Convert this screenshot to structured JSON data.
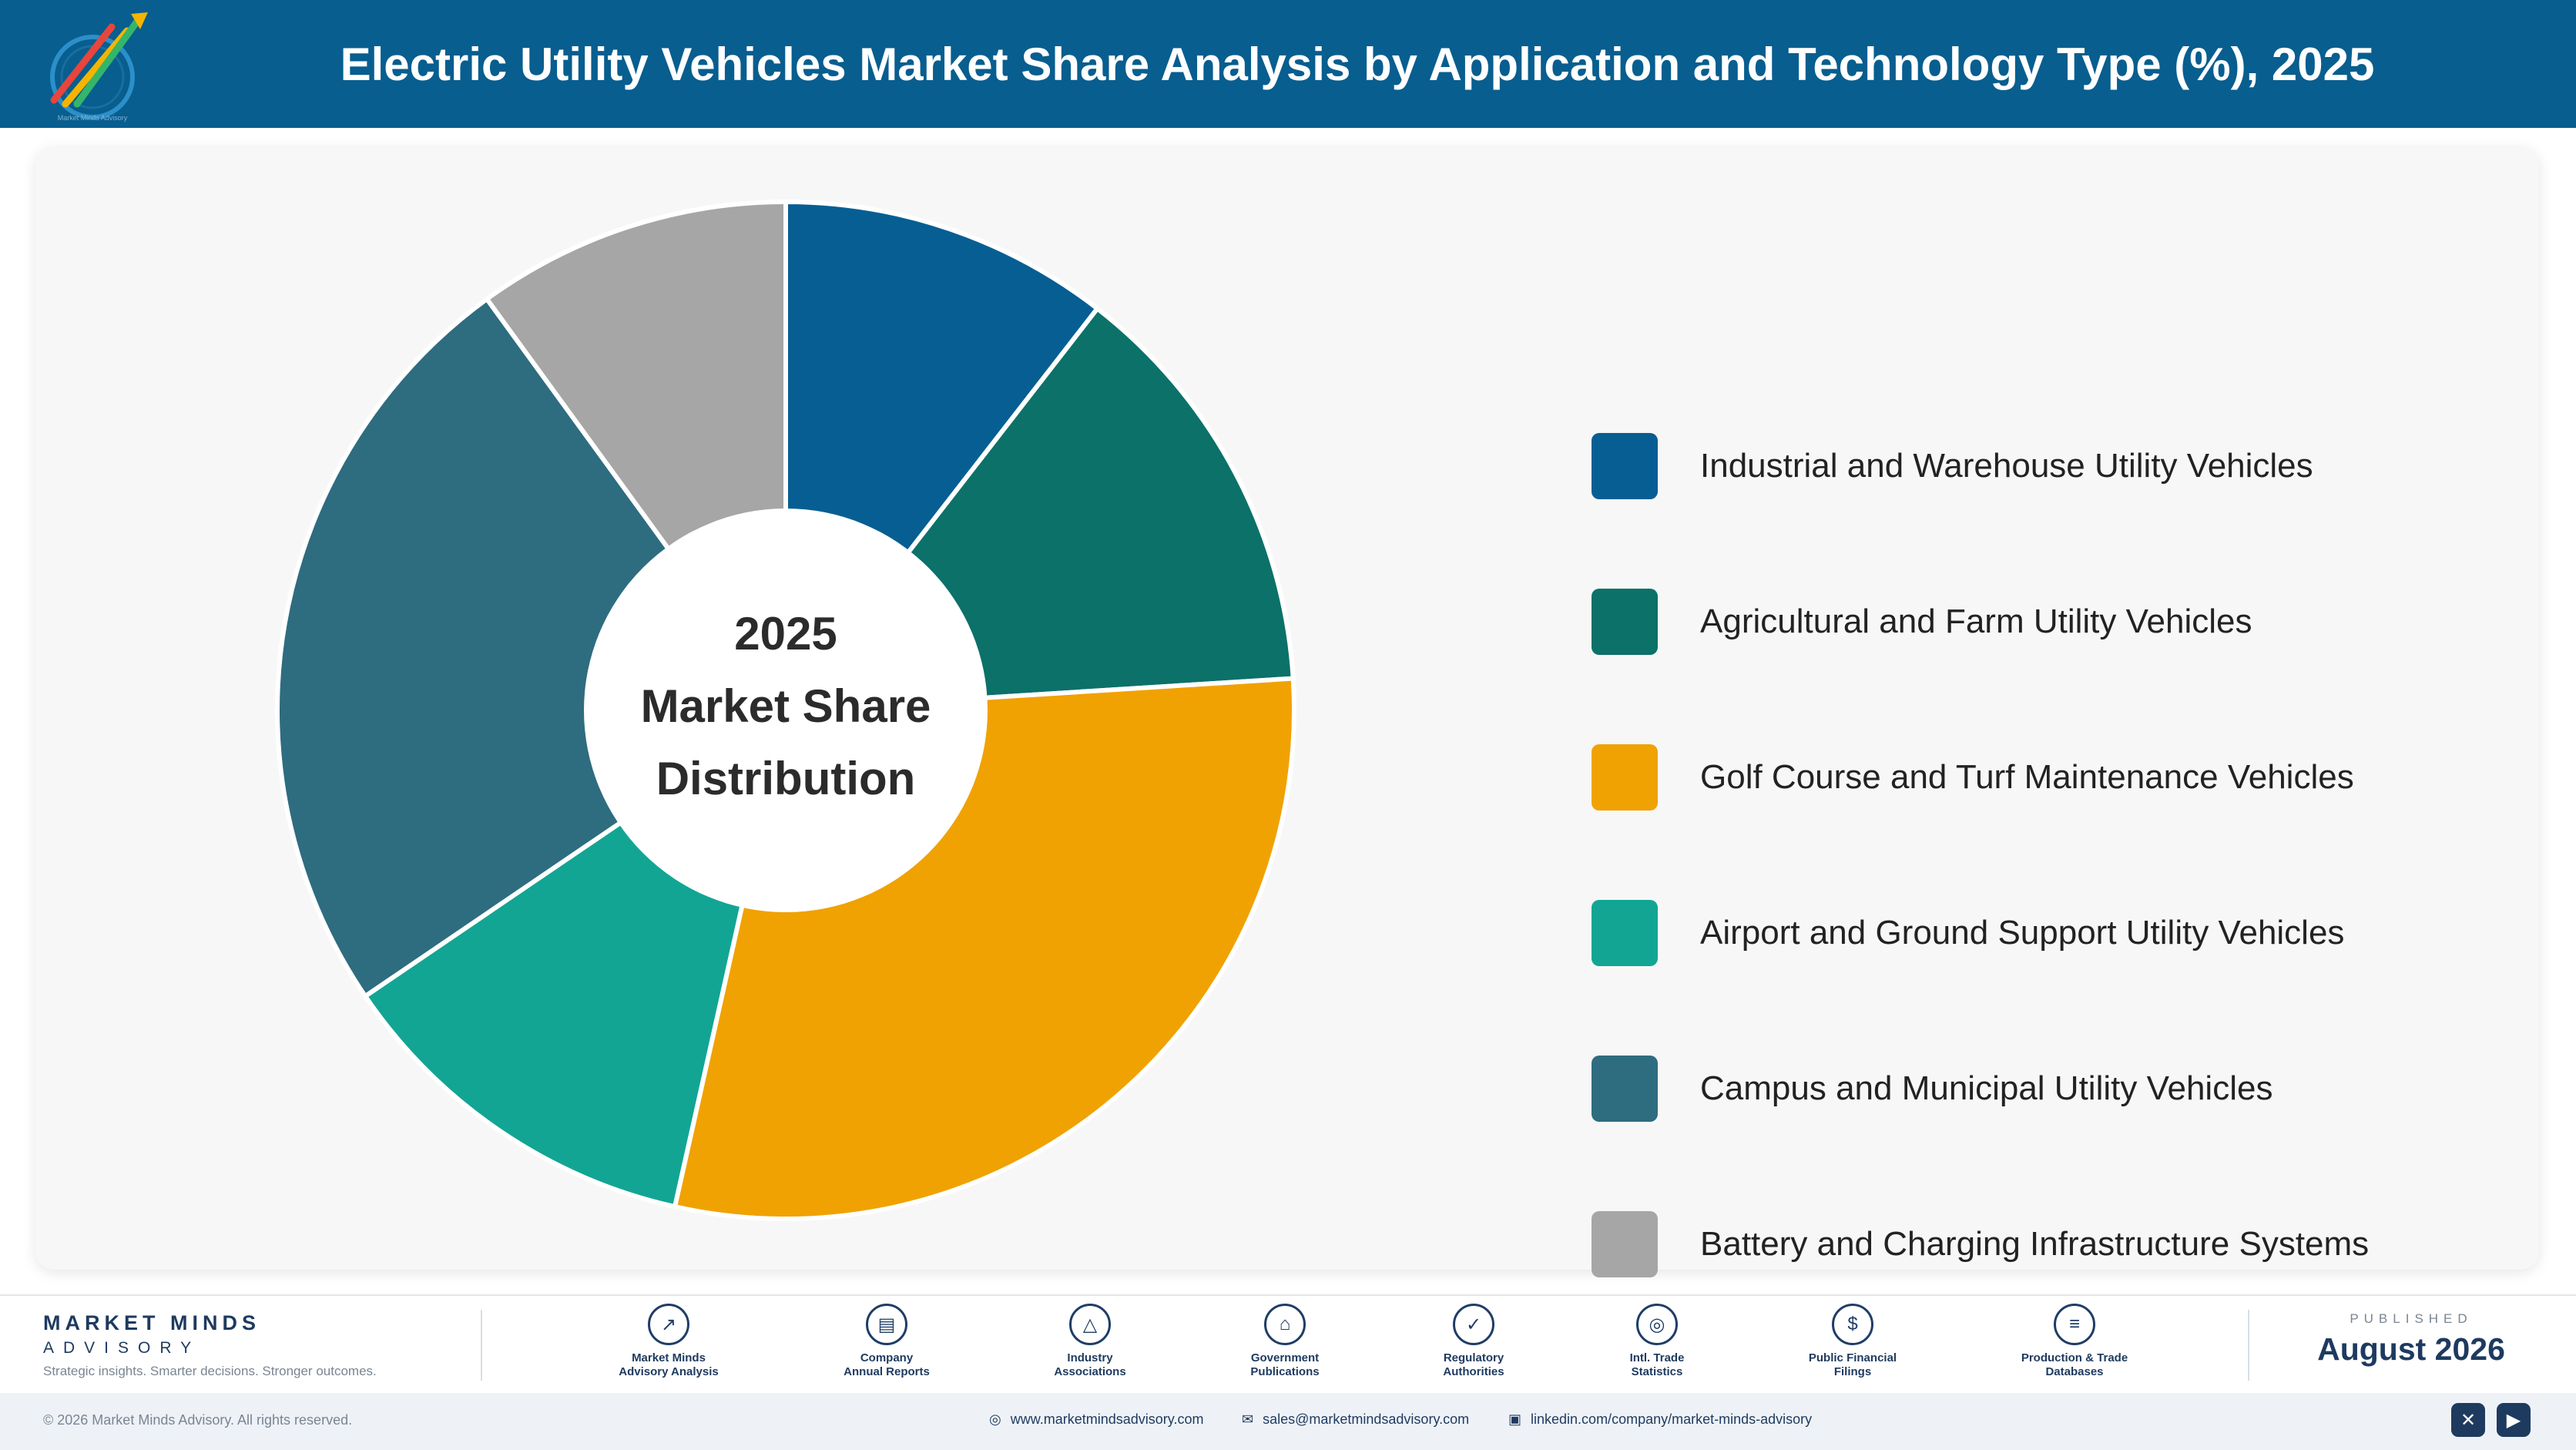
{
  "header": {
    "title": "Electric Utility Vehicles Market Share Analysis by Application and Technology Type (%), 2025",
    "logo_name": "Market Minds Advisory",
    "background": "#075E8F"
  },
  "chart_data": {
    "type": "pie",
    "style": "donut",
    "center_text": [
      "2025",
      "Market Share",
      "Distribution"
    ],
    "legend_placement": "right",
    "labels": [
      "Industrial and Warehouse Utility Vehicles",
      "Agricultural and Farm Utility Vehicles",
      "Golf Course and Turf Maintenance Vehicles",
      "Airport and Ground Support Utility Vehicles",
      "Campus and Municipal Utility Vehicles",
      "Battery and Charging Infrastructure Systems"
    ],
    "values": [
      10.5,
      13.5,
      29.5,
      12.0,
      24.5,
      10.0
    ],
    "colors": [
      "#075E93",
      "#0B7169",
      "#F0A202",
      "#12A594",
      "#2E6C80",
      "#A6A6A6"
    ]
  },
  "footer": {
    "brand": "MARKET MINDS",
    "brand_sub": "ADVISORY",
    "tagline": "Strategic insights. Smarter decisions. Stronger outcomes.",
    "sources": [
      {
        "line1": "Market Minds",
        "line2": "Advisory Analysis",
        "icon": "trend-chart-icon",
        "glyph": "↗"
      },
      {
        "line1": "Company",
        "line2": "Annual Reports",
        "icon": "document-icon",
        "glyph": "▤"
      },
      {
        "line1": "Industry",
        "line2": "Associations",
        "icon": "network-icon",
        "glyph": "△"
      },
      {
        "line1": "Government",
        "line2": "Publications",
        "icon": "government-building-icon",
        "glyph": "⌂"
      },
      {
        "line1": "Regulatory",
        "line2": "Authorities",
        "icon": "shield-icon",
        "glyph": "✓"
      },
      {
        "line1": "Intl. Trade",
        "line2": "Statistics",
        "icon": "globe-icon",
        "glyph": "◎"
      },
      {
        "line1": "Public Financial",
        "line2": "Filings",
        "icon": "dollar-coin-icon",
        "glyph": "$"
      },
      {
        "line1": "Production & Trade",
        "line2": "Databases",
        "icon": "database-icon",
        "glyph": "≡"
      }
    ],
    "published_label": "PUBLISHED",
    "published_date": "August 2026"
  },
  "bottom_bar": {
    "copyright": "© 2026 Market Minds Advisory. All rights reserved.",
    "website": "www.marketmindsadvisory.com",
    "email": "sales@marketmindsadvisory.com",
    "linkedin": "linkedin.com/company/market-minds-advisory",
    "social": [
      {
        "icon": "x-social-icon",
        "glyph": "✕"
      },
      {
        "icon": "youtube-icon",
        "glyph": "▶"
      }
    ]
  }
}
